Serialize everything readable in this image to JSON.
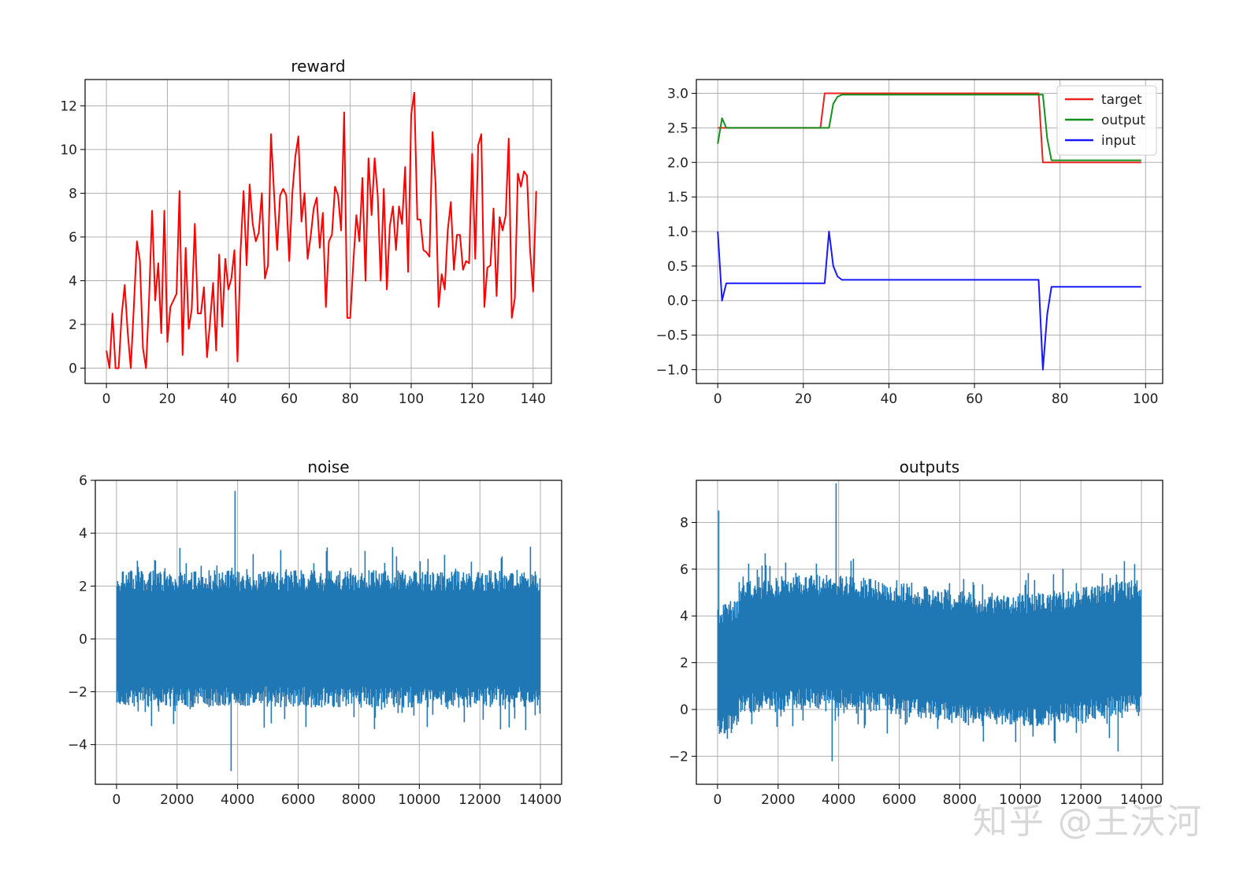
{
  "watermark": "知乎 @王沃河",
  "chart_data": [
    {
      "id": "reward",
      "type": "line",
      "title": "reward",
      "xlabel": "",
      "ylabel": "",
      "xlim": [
        -7,
        146
      ],
      "ylim": [
        -0.7,
        13.2
      ],
      "xticks": [
        0,
        20,
        40,
        60,
        80,
        100,
        120,
        140
      ],
      "yticks": [
        0,
        2,
        4,
        6,
        8,
        10,
        12
      ],
      "grid": true,
      "series": [
        {
          "color": "#ff0000",
          "values": [
            0.8,
            0.0,
            2.5,
            0.0,
            0.0,
            2.4,
            3.8,
            1.6,
            0.0,
            2.8,
            5.8,
            4.9,
            0.9,
            0.0,
            3.2,
            7.2,
            3.1,
            4.8,
            1.6,
            7.2,
            1.2,
            2.8,
            3.1,
            3.4,
            8.1,
            0.6,
            5.5,
            1.8,
            2.7,
            6.6,
            2.5,
            2.5,
            3.7,
            0.5,
            2.1,
            3.9,
            0.8,
            5.2,
            1.9,
            5.0,
            3.6,
            4.1,
            5.4,
            0.3,
            5.3,
            8.1,
            4.7,
            8.4,
            6.6,
            5.8,
            6.2,
            8.0,
            4.1,
            4.7,
            10.7,
            8.0,
            5.4,
            7.9,
            8.2,
            7.9,
            4.9,
            8.0,
            9.7,
            10.6,
            6.7,
            8.0,
            5.0,
            6.0,
            7.3,
            7.8,
            5.5,
            7.1,
            2.8,
            5.8,
            6.1,
            8.3,
            7.9,
            6.3,
            11.7,
            2.3,
            2.3,
            4.8,
            7.0,
            5.8,
            8.7,
            4.0,
            9.6,
            7.0,
            9.6,
            7.9,
            4.0,
            8.2,
            3.6,
            6.5,
            7.4,
            5.4,
            7.4,
            6.6,
            9.2,
            4.4,
            11.6,
            12.6,
            6.8,
            6.8,
            5.4,
            5.3,
            5.1,
            10.8,
            8.4,
            2.8,
            4.3,
            3.6,
            6.3,
            7.6,
            4.5,
            6.1,
            6.1,
            4.5,
            4.9,
            4.8,
            9.8,
            5.0,
            10.2,
            10.7,
            2.8,
            4.6,
            4.7,
            7.3,
            3.3,
            6.9,
            6.3,
            7.0,
            10.5,
            2.3,
            3.2,
            8.9,
            8.3,
            9.0,
            8.8,
            5.4,
            3.5,
            8.1
          ]
        }
      ]
    },
    {
      "id": "signals",
      "type": "line",
      "title": "",
      "xlabel": "",
      "ylabel": "",
      "xlim": [
        -5,
        104
      ],
      "ylim": [
        -1.2,
        3.2
      ],
      "xticks": [
        0,
        20,
        40,
        60,
        80,
        100
      ],
      "yticks": [
        -1.0,
        -0.5,
        0.0,
        0.5,
        1.0,
        1.5,
        2.0,
        2.5,
        3.0
      ],
      "ytick_labels": [
        "−1.0",
        "−0.5",
        "0.0",
        "0.5",
        "1.0",
        "1.5",
        "2.0",
        "2.5",
        "3.0"
      ],
      "grid": true,
      "legend_position": "top-right",
      "series": [
        {
          "name": "target",
          "color": "#e8231f",
          "x": [
            0,
            24,
            25,
            75,
            76,
            99
          ],
          "y": [
            2.5,
            2.5,
            3.0,
            3.0,
            2.0,
            2.0
          ]
        },
        {
          "name": "output",
          "color": "#16901e",
          "x": [
            0,
            1,
            2,
            25,
            26,
            27,
            28,
            29,
            76,
            77,
            78,
            99
          ],
          "y": [
            2.27,
            2.64,
            2.5,
            2.5,
            2.5,
            2.85,
            2.95,
            2.98,
            2.98,
            2.35,
            2.03,
            2.03
          ]
        },
        {
          "name": "input",
          "color": "#1919ff",
          "x": [
            0,
            1,
            2,
            25,
            26,
            27,
            28,
            29,
            75,
            76,
            77,
            78,
            99
          ],
          "y": [
            1.0,
            0.0,
            0.25,
            0.25,
            1.0,
            0.5,
            0.35,
            0.3,
            0.3,
            -1.0,
            -0.2,
            0.2,
            0.2
          ]
        }
      ]
    },
    {
      "id": "noise",
      "type": "line",
      "title": "noise",
      "xlabel": "",
      "ylabel": "",
      "xlim": [
        -700,
        14700
      ],
      "ylim": [
        -5.5,
        6.0
      ],
      "xticks": [
        0,
        2000,
        4000,
        6000,
        8000,
        10000,
        12000,
        14000
      ],
      "yticks": [
        -4,
        -2,
        0,
        2,
        4,
        6
      ],
      "ytick_labels": [
        "−4",
        "−2",
        "0",
        "2",
        "4",
        "6"
      ],
      "grid": true,
      "series": [
        {
          "color": "#1f77b4",
          "points": 14000,
          "mean": 0,
          "std": 1,
          "max": 5.6,
          "min": -5.0
        }
      ]
    },
    {
      "id": "outputs",
      "type": "line",
      "title": "outputs",
      "xlabel": "",
      "ylabel": "",
      "xlim": [
        -700,
        14700
      ],
      "ylim": [
        -3.2,
        9.8
      ],
      "xticks": [
        0,
        2000,
        4000,
        6000,
        8000,
        10000,
        12000,
        14000
      ],
      "yticks": [
        -2,
        0,
        2,
        4,
        6,
        8
      ],
      "ytick_labels": [
        "−2",
        "0",
        "2",
        "4",
        "6",
        "8"
      ],
      "grid": true,
      "series": [
        {
          "color": "#1f77b4",
          "points": 14000,
          "mean": 2.5,
          "std": 1.1,
          "max": 9.3,
          "min": -2.6
        }
      ]
    }
  ]
}
